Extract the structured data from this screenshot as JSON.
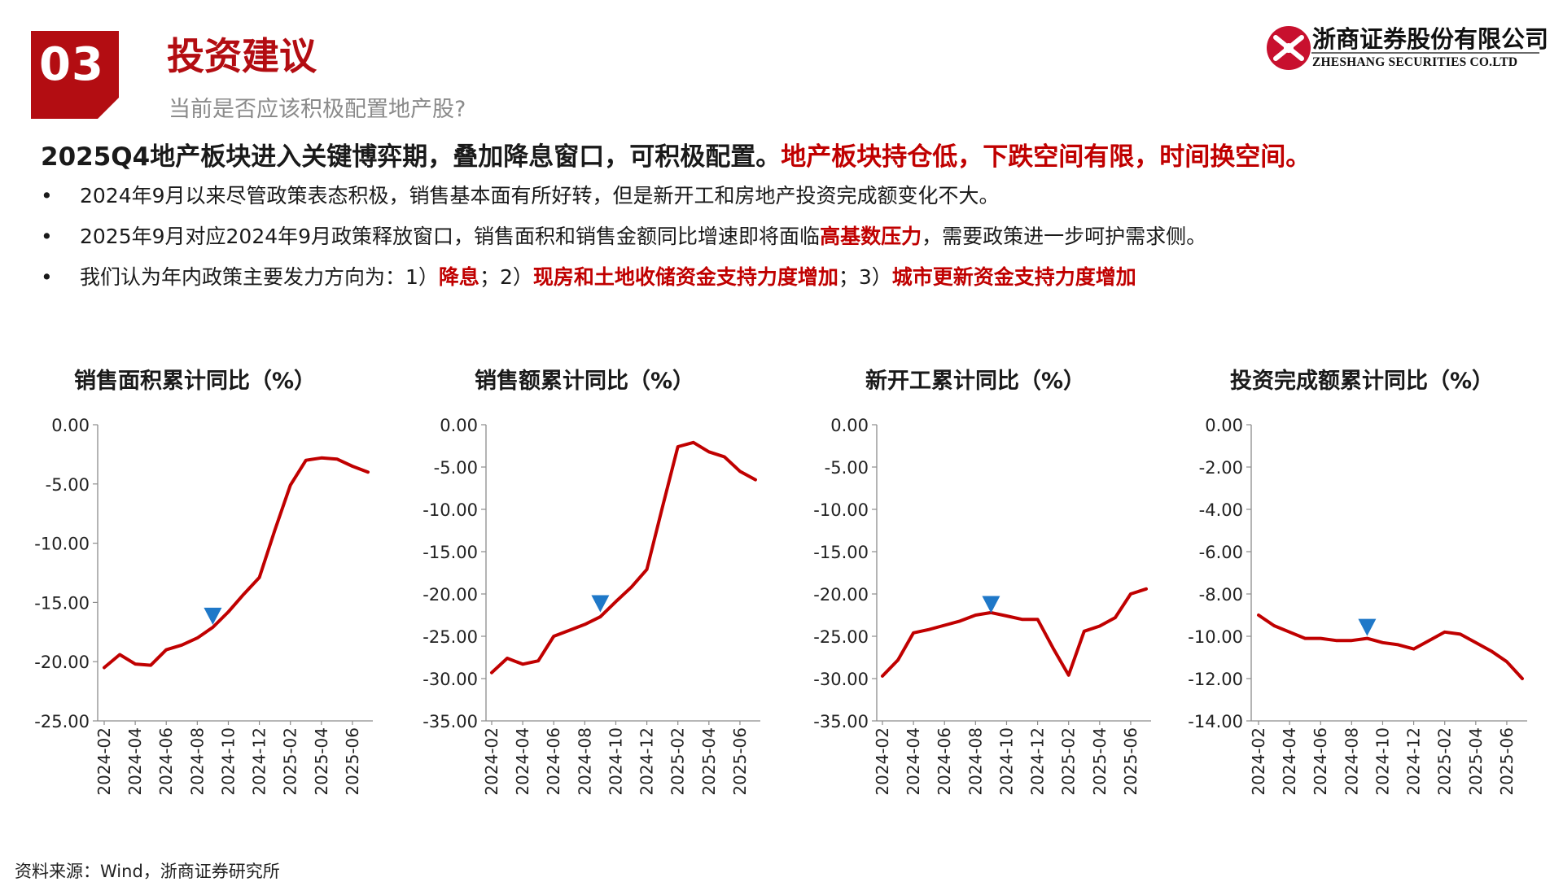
{
  "header": {
    "section_number": "03",
    "title": "投资建议",
    "subtitle": "当前是否应该积极配置地产股?"
  },
  "logo": {
    "name_cn": "浙商证券股份有限公司",
    "name_en": "ZHESHANG SECURITIES CO.LTD"
  },
  "headline": {
    "black": "2025Q4地产板块进入关键博弈期，叠加降息窗口，可积极配置。",
    "red": "地产板块持仓低，下跌空间有限，时间换空间。"
  },
  "bullets": [
    {
      "bullet": "•",
      "parts": [
        {
          "text": "2024年9月以来尽管政策表态积极，销售基本面有所好转，但是新开工和房地产投资完成额变化不大。",
          "red": false
        }
      ]
    },
    {
      "bullet": "•",
      "parts": [
        {
          "text": "2025年9月对应2024年9月政策释放窗口，销售面积和销售金额同比增速即将面临",
          "red": false
        },
        {
          "text": "高基数压力",
          "red": true
        },
        {
          "text": "，需要政策进一步呵护需求侧。",
          "red": false
        }
      ]
    },
    {
      "bullet": "•",
      "parts": [
        {
          "text": "我们认为年内政策主要发力方向为：1）",
          "red": false
        },
        {
          "text": "降息",
          "red": true
        },
        {
          "text": "；2）",
          "red": false
        },
        {
          "text": "现房和土地收储资金支持力度增加",
          "red": true
        },
        {
          "text": "；3）",
          "red": false
        },
        {
          "text": "城市更新资金支持力度增加",
          "red": true
        }
      ]
    }
  ],
  "colors": {
    "brand_red": "#b30d12",
    "line_red": "#c00000",
    "marker_blue": "#1f78c8"
  },
  "chart_data": [
    {
      "type": "line",
      "title": "销售面积累计同比（%）",
      "x": [
        "2024-02",
        "2024-03",
        "2024-04",
        "2024-05",
        "2024-06",
        "2024-07",
        "2024-08",
        "2024-09",
        "2024-10",
        "2024-11",
        "2024-12",
        "2025-01",
        "2025-02",
        "2025-03",
        "2025-04",
        "2025-05",
        "2025-06",
        "2025-07"
      ],
      "x_ticks": [
        "2024-02",
        "2024-04",
        "2024-06",
        "2024-08",
        "2024-10",
        "2024-12",
        "2025-02",
        "2025-04",
        "2025-06"
      ],
      "values": [
        -20.5,
        -19.4,
        -20.2,
        -20.3,
        -19.0,
        -18.6,
        -18.0,
        -17.1,
        -15.8,
        -14.3,
        -12.9,
        -8.9,
        -5.1,
        -3.0,
        -2.8,
        -2.9,
        -3.5,
        -4.0
      ],
      "y_ticks": [
        0.0,
        -5.0,
        -10.0,
        -15.0,
        -20.0,
        -25.0
      ],
      "ylim": [
        -25,
        0
      ],
      "marker": {
        "x": "2024-09",
        "y": -16.2,
        "shape": "triangle-down"
      }
    },
    {
      "type": "line",
      "title": "销售额累计同比（%）",
      "x": [
        "2024-02",
        "2024-03",
        "2024-04",
        "2024-05",
        "2024-06",
        "2024-07",
        "2024-08",
        "2024-09",
        "2024-10",
        "2024-11",
        "2024-12",
        "2025-01",
        "2025-02",
        "2025-03",
        "2025-04",
        "2025-05",
        "2025-06",
        "2025-07"
      ],
      "x_ticks": [
        "2024-02",
        "2024-04",
        "2024-06",
        "2024-08",
        "2024-10",
        "2024-12",
        "2025-02",
        "2025-04",
        "2025-06"
      ],
      "values": [
        -29.3,
        -27.6,
        -28.3,
        -27.9,
        -25.0,
        -24.3,
        -23.6,
        -22.7,
        -20.9,
        -19.2,
        -17.1,
        -9.8,
        -2.6,
        -2.1,
        -3.2,
        -3.8,
        -5.5,
        -6.5
      ],
      "y_ticks": [
        0.0,
        -5.0,
        -10.0,
        -15.0,
        -20.0,
        -25.0,
        -30.0,
        -35.0
      ],
      "ylim": [
        -35,
        0
      ],
      "marker": {
        "x": "2024-09",
        "y": -21.2,
        "shape": "triangle-down"
      }
    },
    {
      "type": "line",
      "title": "新开工累计同比（%）",
      "x": [
        "2024-02",
        "2024-03",
        "2024-04",
        "2024-05",
        "2024-06",
        "2024-07",
        "2024-08",
        "2024-09",
        "2024-10",
        "2024-11",
        "2024-12",
        "2025-01",
        "2025-02",
        "2025-03",
        "2025-04",
        "2025-05",
        "2025-06",
        "2025-07"
      ],
      "x_ticks": [
        "2024-02",
        "2024-04",
        "2024-06",
        "2024-08",
        "2024-10",
        "2024-12",
        "2025-02",
        "2025-04",
        "2025-06"
      ],
      "values": [
        -29.7,
        -27.8,
        -24.6,
        -24.2,
        -23.7,
        -23.2,
        -22.5,
        -22.2,
        -22.6,
        -23.0,
        -23.0,
        -26.4,
        -29.6,
        -24.4,
        -23.8,
        -22.8,
        -20.0,
        -19.4
      ],
      "y_ticks": [
        0.0,
        -5.0,
        -10.0,
        -15.0,
        -20.0,
        -25.0,
        -30.0,
        -35.0
      ],
      "ylim": [
        -35,
        0
      ],
      "marker": {
        "x": "2024-09",
        "y": -21.3,
        "shape": "triangle-down"
      }
    },
    {
      "type": "line",
      "title": "投资完成额累计同比（%）",
      "x": [
        "2024-02",
        "2024-03",
        "2024-04",
        "2024-05",
        "2024-06",
        "2024-07",
        "2024-08",
        "2024-09",
        "2024-10",
        "2024-11",
        "2024-12",
        "2025-01",
        "2025-02",
        "2025-03",
        "2025-04",
        "2025-05",
        "2025-06",
        "2025-07"
      ],
      "x_ticks": [
        "2024-02",
        "2024-04",
        "2024-06",
        "2024-08",
        "2024-10",
        "2024-12",
        "2025-02",
        "2025-04",
        "2025-06"
      ],
      "values": [
        -9.0,
        -9.5,
        -9.8,
        -10.1,
        -10.1,
        -10.2,
        -10.2,
        -10.1,
        -10.3,
        -10.4,
        -10.6,
        -10.2,
        -9.8,
        -9.9,
        -10.3,
        -10.7,
        -11.2,
        -12.0
      ],
      "y_ticks": [
        0.0,
        -2.0,
        -4.0,
        -6.0,
        -8.0,
        -10.0,
        -12.0,
        -14.0
      ],
      "ylim": [
        -14,
        0
      ],
      "marker": {
        "x": "2024-09",
        "y": -9.6,
        "shape": "triangle-down"
      }
    }
  ],
  "source": "资料来源：Wind，浙商证券研究所"
}
